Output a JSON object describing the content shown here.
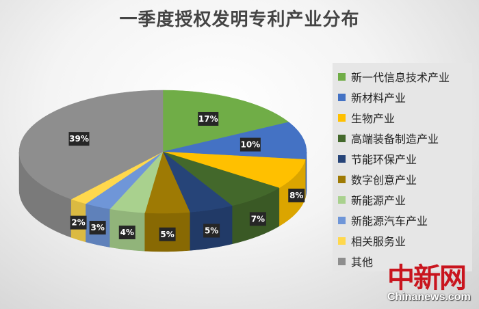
{
  "chart_data": {
    "type": "pie",
    "title": "一季度授权发明专利产业分布",
    "legend_position": "right",
    "slices": [
      {
        "label": "新一代信息技术产业",
        "value": 17,
        "display": "17%",
        "color": "#70ad47"
      },
      {
        "label": "新材料产业",
        "value": 10,
        "display": "10%",
        "color": "#4472c4"
      },
      {
        "label": "生物产业",
        "value": 8,
        "display": "8%",
        "color": "#ffc000"
      },
      {
        "label": "高端装备制造产业",
        "value": 7,
        "display": "7%",
        "color": "#43682b"
      },
      {
        "label": "节能环保产业",
        "value": 5,
        "display": "5%",
        "color": "#264478"
      },
      {
        "label": "数字创意产业",
        "value": 5,
        "display": "5%",
        "color": "#9e7a04"
      },
      {
        "label": "新能源产业",
        "value": 4,
        "display": "4%",
        "color": "#a9d18e"
      },
      {
        "label": "新能源汽车产业",
        "value": 3,
        "display": "3%",
        "color": "#6f96d8"
      },
      {
        "label": "相关服务业",
        "value": 2,
        "display": "2%",
        "color": "#ffd84d"
      },
      {
        "label": "其他",
        "value": 39,
        "display": "39%",
        "color": "#8e8e8e"
      }
    ]
  },
  "watermark": {
    "chinese": "中新网",
    "english": "Chinanews.com"
  }
}
